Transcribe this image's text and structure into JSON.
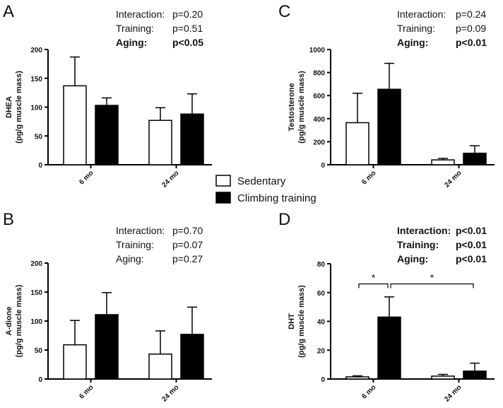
{
  "legend": {
    "items": [
      {
        "label": "Sedentary",
        "fill": "#ffffff"
      },
      {
        "label": "Climbing training",
        "fill": "#000000"
      }
    ]
  },
  "chart_data": [
    {
      "panel": "A",
      "type": "bar",
      "categories": [
        "6 mo",
        "24 mo"
      ],
      "ylabel_lines": [
        "DHEA",
        "(pg/g muscle mass)"
      ],
      "ylim": [
        0,
        200
      ],
      "yticks": [
        0,
        50,
        100,
        150,
        200
      ],
      "series": [
        {
          "name": "Sedentary",
          "values": [
            137,
            77
          ],
          "errors": [
            50,
            22
          ]
        },
        {
          "name": "Climbing training",
          "values": [
            103,
            88
          ],
          "errors": [
            13,
            35
          ]
        }
      ],
      "stats": [
        {
          "label": "Interaction:",
          "value": "p=0.20",
          "bold": false
        },
        {
          "label": "Training:",
          "value": "p=0.51",
          "bold": false
        },
        {
          "label": "Aging:",
          "value": "p<0.05",
          "bold": true
        }
      ],
      "significance": []
    },
    {
      "panel": "C",
      "type": "bar",
      "categories": [
        "6 mo",
        "24 mo"
      ],
      "ylabel_lines": [
        "Testosterone",
        "(pg/g muscle mass)"
      ],
      "ylim": [
        0,
        1000
      ],
      "yticks": [
        0,
        200,
        400,
        600,
        800,
        1000
      ],
      "series": [
        {
          "name": "Sedentary",
          "values": [
            365,
            42
          ],
          "errors": [
            255,
            13
          ]
        },
        {
          "name": "Climbing training",
          "values": [
            655,
            100
          ],
          "errors": [
            225,
            65
          ]
        }
      ],
      "stats": [
        {
          "label": "Interaction:",
          "value": "p=0.24",
          "bold": false
        },
        {
          "label": "Training:",
          "value": "p=0.09",
          "bold": false
        },
        {
          "label": "Aging:",
          "value": "p<0.01",
          "bold": true
        }
      ],
      "significance": []
    },
    {
      "panel": "B",
      "type": "bar",
      "categories": [
        "6 mo",
        "24 mo"
      ],
      "ylabel_lines": [
        "A-dione",
        "(pg/g muscle mass)"
      ],
      "ylim": [
        0,
        200
      ],
      "yticks": [
        0,
        50,
        100,
        150,
        200
      ],
      "series": [
        {
          "name": "Sedentary",
          "values": [
            59,
            43
          ],
          "errors": [
            42,
            40
          ]
        },
        {
          "name": "Climbing training",
          "values": [
            111,
            77
          ],
          "errors": [
            38,
            47
          ]
        }
      ],
      "stats": [
        {
          "label": "Interaction:",
          "value": "p=0.70",
          "bold": false
        },
        {
          "label": "Training:",
          "value": "p=0.07",
          "bold": false
        },
        {
          "label": "Aging:",
          "value": "p=0.27",
          "bold": false
        }
      ],
      "significance": []
    },
    {
      "panel": "D",
      "type": "bar",
      "categories": [
        "6 mo",
        "24 mo"
      ],
      "ylabel_lines": [
        "DHT",
        "(pg/g muscle mass)"
      ],
      "ylim": [
        0,
        80
      ],
      "yticks": [
        0,
        20,
        40,
        60,
        80
      ],
      "series": [
        {
          "name": "Sedentary",
          "values": [
            1.5,
            2
          ],
          "errors": [
            0.7,
            1.2
          ]
        },
        {
          "name": "Climbing training",
          "values": [
            43,
            5.5
          ],
          "errors": [
            14,
            5.5
          ]
        }
      ],
      "stats": [
        {
          "label": "Interaction:",
          "value": "p<0.01",
          "bold": true
        },
        {
          "label": "Training:",
          "value": "p<0.01",
          "bold": true
        },
        {
          "label": "Aging:",
          "value": "p<0.01",
          "bold": true
        }
      ],
      "significance": [
        {
          "from": [
            0,
            0
          ],
          "to": [
            0,
            1
          ],
          "y": 66,
          "label": "*"
        },
        {
          "from": [
            0,
            1
          ],
          "to": [
            1,
            1
          ],
          "y": 66,
          "label": "*"
        }
      ]
    }
  ]
}
